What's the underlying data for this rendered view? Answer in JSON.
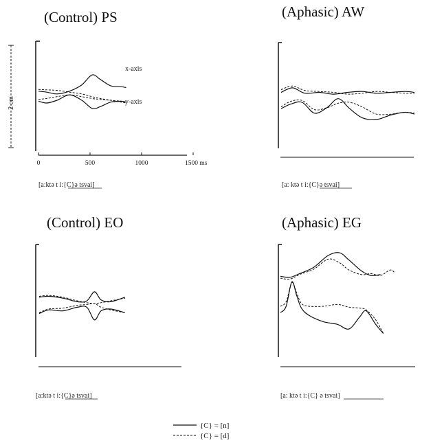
{
  "figure": {
    "scale_label": "2 cm",
    "time_ticks": [
      "0",
      "500",
      "1000",
      "1500 ms"
    ]
  },
  "legend": {
    "items": [
      {
        "style": "solid",
        "label": "{C} = [n]"
      },
      {
        "style": "dashed",
        "label": "{C} = [d]"
      }
    ]
  },
  "chart_data": [
    {
      "type": "line",
      "title": "(Control) PS",
      "transcription": "[a:ktə  t i:{C}ə  tsvai]",
      "underlined": "t i:{C}ə",
      "annotations": [
        "x-axis",
        "y-axis"
      ],
      "xlabel": "ms",
      "x_ticks": [
        "0",
        "500",
        "1000",
        "1500 ms"
      ],
      "xlim": [
        0,
        1500
      ],
      "ylim": [
        0,
        10
      ],
      "series": [
        {
          "axis": "x",
          "style": "solid",
          "points": [
            [
              0,
              6.3
            ],
            [
              80,
              6.2
            ],
            [
              180,
              6.0
            ],
            [
              300,
              6.3
            ],
            [
              420,
              7.0
            ],
            [
              520,
              8.1
            ],
            [
              600,
              7.6
            ],
            [
              700,
              6.9
            ],
            [
              800,
              6.8
            ],
            [
              850,
              6.7
            ]
          ]
        },
        {
          "axis": "x",
          "style": "dashed",
          "points": [
            [
              0,
              6.5
            ],
            [
              80,
              6.45
            ],
            [
              180,
              6.4
            ],
            [
              300,
              6.2
            ],
            [
              420,
              6.0
            ],
            [
              520,
              5.7
            ],
            [
              600,
              5.5
            ],
            [
              700,
              5.3
            ],
            [
              800,
              5.1
            ],
            [
              850,
              5.0
            ]
          ]
        },
        {
          "axis": "y",
          "style": "solid",
          "points": [
            [
              0,
              5.2
            ],
            [
              80,
              5.0
            ],
            [
              180,
              5.3
            ],
            [
              300,
              5.9
            ],
            [
              420,
              5.3
            ],
            [
              520,
              4.4
            ],
            [
              600,
              4.6
            ],
            [
              700,
              5.1
            ],
            [
              800,
              5.2
            ],
            [
              850,
              5.1
            ]
          ]
        },
        {
          "axis": "y",
          "style": "dashed",
          "points": [
            [
              0,
              5.4
            ],
            [
              80,
              5.5
            ],
            [
              180,
              5.7
            ],
            [
              300,
              5.9
            ],
            [
              420,
              5.7
            ],
            [
              520,
              5.5
            ],
            [
              600,
              5.4
            ],
            [
              700,
              5.3
            ],
            [
              800,
              5.2
            ],
            [
              850,
              5.1
            ]
          ]
        }
      ]
    },
    {
      "type": "line",
      "title": "(Aphasic) AW",
      "transcription": "[a:  ktə   t i:{C}ə   tsvai]",
      "underlined": "t i:{C}ə",
      "xlim": [
        0,
        1500
      ],
      "ylim": [
        0,
        10
      ],
      "series": [
        {
          "axis": "x",
          "style": "solid",
          "points": [
            [
              0,
              6.1
            ],
            [
              120,
              6.6
            ],
            [
              250,
              6.0
            ],
            [
              400,
              6.1
            ],
            [
              550,
              5.9
            ],
            [
              700,
              6.1
            ],
            [
              850,
              6.2
            ],
            [
              1000,
              6.0
            ],
            [
              1150,
              6.1
            ],
            [
              1300,
              6.2
            ],
            [
              1400,
              6.1
            ]
          ]
        },
        {
          "axis": "x",
          "style": "dashed",
          "points": [
            [
              0,
              6.4
            ],
            [
              120,
              6.8
            ],
            [
              250,
              6.3
            ],
            [
              400,
              6.2
            ],
            [
              550,
              6.1
            ],
            [
              700,
              5.9
            ],
            [
              850,
              6.0
            ],
            [
              1000,
              6.2
            ],
            [
              1150,
              6.1
            ],
            [
              1300,
              6.0
            ],
            [
              1400,
              6.0
            ]
          ]
        },
        {
          "axis": "y",
          "style": "solid",
          "points": [
            [
              0,
              4.3
            ],
            [
              100,
              4.8
            ],
            [
              220,
              5.0
            ],
            [
              350,
              3.8
            ],
            [
              480,
              4.4
            ],
            [
              600,
              5.4
            ],
            [
              720,
              4.3
            ],
            [
              850,
              3.3
            ],
            [
              1000,
              3.1
            ],
            [
              1150,
              3.6
            ],
            [
              1300,
              3.9
            ],
            [
              1400,
              3.7
            ]
          ]
        },
        {
          "axis": "y",
          "style": "dashed",
          "points": [
            [
              0,
              4.5
            ],
            [
              100,
              5.1
            ],
            [
              220,
              5.2
            ],
            [
              350,
              4.2
            ],
            [
              480,
              4.4
            ],
            [
              600,
              4.9
            ],
            [
              720,
              5.0
            ],
            [
              850,
              4.5
            ],
            [
              1000,
              3.7
            ],
            [
              1150,
              3.7
            ],
            [
              1300,
              3.9
            ],
            [
              1400,
              3.8
            ]
          ]
        }
      ]
    },
    {
      "type": "line",
      "title": "(Control) EO",
      "transcription": "[a:ktə  t i:{C}ə  tsvai]",
      "underlined": "t i:{C}ə",
      "xlim": [
        0,
        1500
      ],
      "ylim": [
        0,
        10
      ],
      "series": [
        {
          "axis": "x",
          "style": "solid",
          "points": [
            [
              0,
              6.3
            ],
            [
              100,
              6.4
            ],
            [
              250,
              6.2
            ],
            [
              400,
              5.8
            ],
            [
              500,
              5.9
            ],
            [
              580,
              6.9
            ],
            [
              650,
              6.0
            ],
            [
              750,
              5.8
            ],
            [
              900,
              6.3
            ]
          ]
        },
        {
          "axis": "x",
          "style": "dashed",
          "points": [
            [
              0,
              6.4
            ],
            [
              100,
              6.5
            ],
            [
              250,
              6.3
            ],
            [
              400,
              5.9
            ],
            [
              500,
              5.7
            ],
            [
              580,
              5.6
            ],
            [
              650,
              5.7
            ],
            [
              750,
              5.9
            ],
            [
              900,
              6.2
            ]
          ]
        },
        {
          "axis": "y",
          "style": "solid",
          "points": [
            [
              0,
              4.5
            ],
            [
              100,
              4.9
            ],
            [
              250,
              4.8
            ],
            [
              400,
              5.2
            ],
            [
              500,
              5.2
            ],
            [
              580,
              3.8
            ],
            [
              650,
              4.8
            ],
            [
              750,
              5.0
            ],
            [
              900,
              4.6
            ]
          ]
        },
        {
          "axis": "y",
          "style": "dashed",
          "points": [
            [
              0,
              4.6
            ],
            [
              100,
              5.0
            ],
            [
              250,
              5.1
            ],
            [
              400,
              5.4
            ],
            [
              500,
              5.5
            ],
            [
              580,
              5.6
            ],
            [
              650,
              5.2
            ],
            [
              750,
              4.9
            ],
            [
              900,
              4.6
            ]
          ]
        }
      ]
    },
    {
      "type": "line",
      "title": "(Aphasic) EG",
      "transcription": "[a:   ktə    t i:{C} ə    tsvai]",
      "underlined": "t i:{C} ə",
      "xlim": [
        0,
        1500
      ],
      "ylim": [
        0,
        10
      ],
      "series": [
        {
          "axis": "x",
          "style": "solid",
          "points": [
            [
              0,
              8.3
            ],
            [
              100,
              8.2
            ],
            [
              200,
              8.6
            ],
            [
              350,
              9.3
            ],
            [
              500,
              10.6
            ],
            [
              620,
              10.9
            ],
            [
              720,
              10.1
            ],
            [
              850,
              8.9
            ],
            [
              950,
              8.4
            ],
            [
              1050,
              8.5
            ]
          ]
        },
        {
          "axis": "x",
          "style": "dashed",
          "points": [
            [
              0,
              8.1
            ],
            [
              100,
              8.0
            ],
            [
              200,
              8.5
            ],
            [
              350,
              9.1
            ],
            [
              500,
              10.2
            ],
            [
              620,
              9.8
            ],
            [
              720,
              9.0
            ],
            [
              850,
              8.5
            ],
            [
              950,
              8.6
            ],
            [
              1050,
              8.4
            ],
            [
              1150,
              9.0
            ],
            [
              1200,
              8.7
            ]
          ]
        },
        {
          "axis": "y",
          "style": "solid",
          "points": [
            [
              0,
              4.3
            ],
            [
              60,
              5.0
            ],
            [
              120,
              7.7
            ],
            [
              170,
              6.2
            ],
            [
              220,
              4.8
            ],
            [
              300,
              4.0
            ],
            [
              450,
              3.3
            ],
            [
              600,
              3.0
            ],
            [
              720,
              2.5
            ],
            [
              830,
              3.8
            ],
            [
              900,
              4.5
            ],
            [
              1000,
              3.0
            ],
            [
              1080,
              2.0
            ]
          ]
        },
        {
          "axis": "y",
          "style": "dashed",
          "points": [
            [
              0,
              5.0
            ],
            [
              60,
              5.5
            ],
            [
              120,
              7.6
            ],
            [
              170,
              6.5
            ],
            [
              220,
              5.3
            ],
            [
              300,
              5.0
            ],
            [
              450,
              5.0
            ],
            [
              600,
              5.2
            ],
            [
              720,
              4.9
            ],
            [
              830,
              4.8
            ],
            [
              900,
              4.6
            ],
            [
              1000,
              3.5
            ],
            [
              1080,
              2.0
            ]
          ]
        }
      ]
    }
  ]
}
